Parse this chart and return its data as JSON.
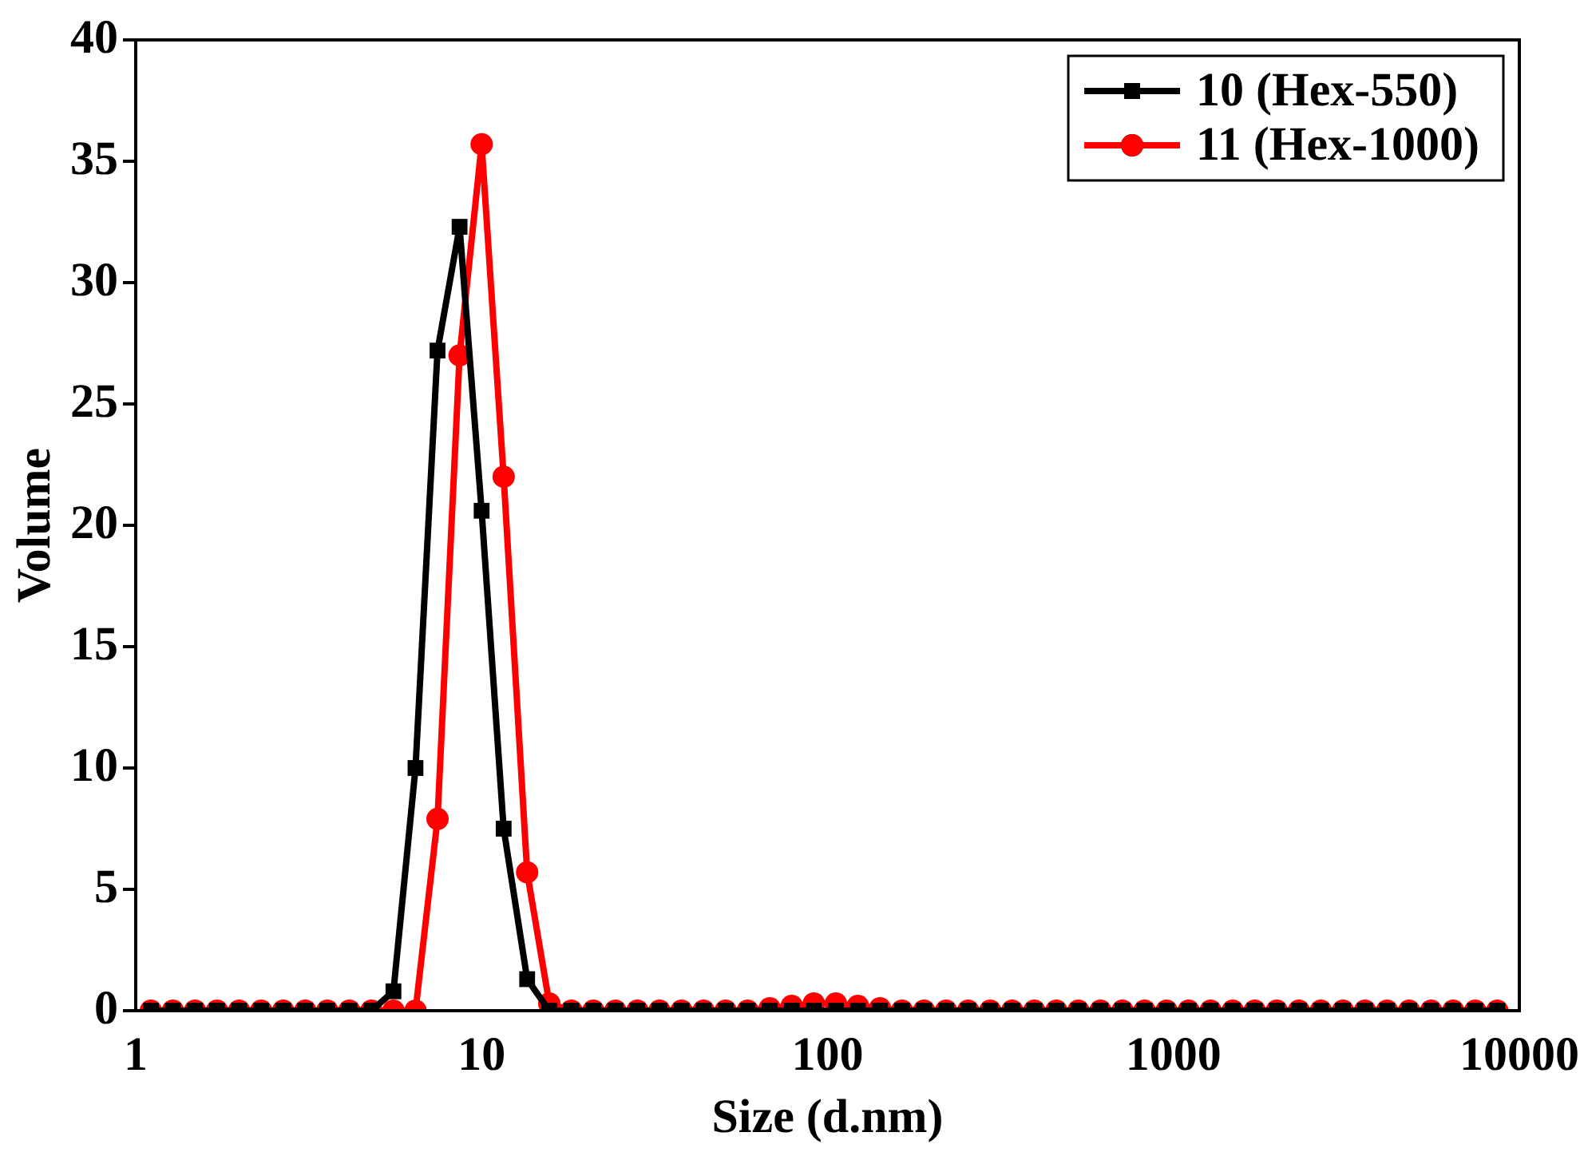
{
  "chart_data": {
    "type": "line",
    "xlabel": "Size (d.nm)",
    "ylabel": "Volume",
    "log": "x",
    "xlim": [
      1,
      10000
    ],
    "xticks": [
      1,
      10,
      100,
      1000,
      10000
    ],
    "ylim": [
      0,
      40
    ],
    "yticks": [
      0,
      5,
      10,
      15,
      20,
      25,
      30,
      35,
      40
    ],
    "grid": false,
    "legend": "top right",
    "line_style": "solid",
    "x": [
      1.106,
      1.281,
      1.484,
      1.718,
      1.99,
      2.305,
      2.669,
      3.091,
      3.58,
      4.145,
      4.801,
      5.56,
      6.439,
      7.456,
      8.635,
      10,
      11.58,
      13.54,
      15.69,
      18.17,
      21.04,
      24.36,
      28.21,
      32.67,
      37.84,
      43.82,
      50.75,
      58.77,
      68.06,
      78.82,
      91.28,
      105.7,
      122.4,
      141.8,
      164.2,
      190.1,
      220.2,
      255,
      295.3,
      342,
      396.1,
      458.7,
      531.2,
      615.1,
      712.4,
      825,
      955.4,
      1106,
      1281,
      1484,
      1718,
      1990,
      2305,
      2669,
      3091,
      3580,
      4145,
      4801,
      5560,
      6439,
      7456,
      8635
    ],
    "series": [
      {
        "name": "10 (Hex-550)",
        "color": "#000000",
        "marker": "square",
        "values": [
          0,
          0,
          0,
          0,
          0,
          0,
          0,
          0,
          0,
          0,
          0,
          0.8,
          10,
          27.2,
          32.3,
          20.6,
          7.5,
          1.3,
          0,
          0,
          0,
          0,
          0,
          0,
          0,
          0,
          0,
          0,
          0,
          0,
          0,
          0,
          0,
          0,
          0,
          0,
          0,
          0,
          0,
          0,
          0,
          0,
          0,
          0,
          0,
          0,
          0,
          0,
          0,
          0,
          0,
          0,
          0,
          0,
          0,
          0,
          0,
          0,
          0,
          0,
          0,
          0
        ]
      },
      {
        "name": "11 (Hex-1000)",
        "color": "#ff0000",
        "marker": "circle",
        "values": [
          0,
          0,
          0,
          0,
          0,
          0,
          0,
          0,
          0,
          0,
          0,
          0,
          0,
          7.9,
          27,
          35.7,
          22,
          5.7,
          0.3,
          0,
          0,
          0,
          0,
          0,
          0,
          0,
          0,
          0,
          0.1,
          0.2,
          0.3,
          0.3,
          0.2,
          0.1,
          0,
          0,
          0,
          0,
          0,
          0,
          0,
          0,
          0,
          0,
          0,
          0,
          0,
          0,
          0,
          0,
          0,
          0,
          0,
          0,
          0,
          0,
          0,
          0,
          0,
          0,
          0,
          0
        ]
      }
    ]
  }
}
